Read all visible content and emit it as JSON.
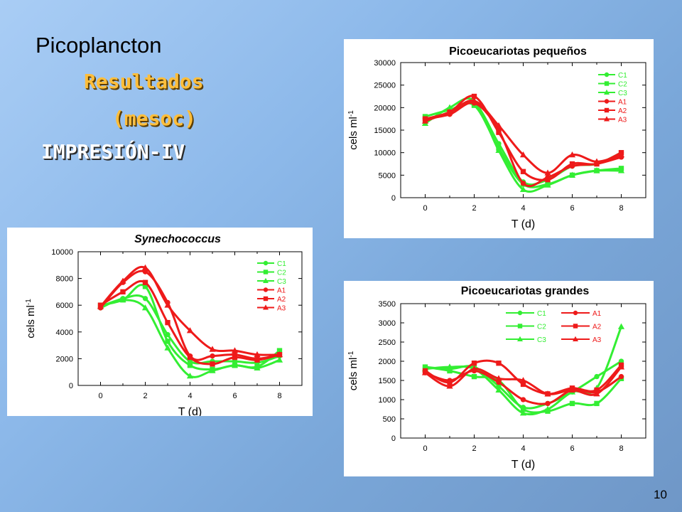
{
  "slide": {
    "title": "Picoplancton",
    "subtitle1": "Resultados",
    "subtitle2": "(mesoc)",
    "subtitle3": "IMPRESIÓN-IV",
    "page_number": "10"
  },
  "colors": {
    "control": "#33ee33",
    "treatment": "#ee1a1a"
  },
  "chart_data": [
    {
      "type": "line",
      "title": "Picoeucariotas pequeños",
      "xlabel": "T (d)",
      "ylabel": "cels ml-1",
      "xlim": [
        -1,
        9
      ],
      "ylim": [
        0,
        30000
      ],
      "xticks": [
        0,
        2,
        4,
        6,
        8
      ],
      "yticks": [
        0,
        5000,
        10000,
        15000,
        20000,
        25000,
        30000
      ],
      "legend_position": "top-right",
      "series": [
        {
          "name": "C1",
          "color": "#33ee33",
          "marker": "circle",
          "x": [
            0,
            1,
            2,
            3,
            4,
            5,
            6,
            7,
            8
          ],
          "y": [
            17000,
            19000,
            21000,
            12000,
            3500,
            4000,
            7000,
            7500,
            10000
          ]
        },
        {
          "name": "C2",
          "color": "#33ee33",
          "marker": "square",
          "x": [
            0,
            1,
            2,
            3,
            4,
            5,
            6,
            7,
            8
          ],
          "y": [
            18000,
            19500,
            20500,
            11000,
            3000,
            3000,
            5000,
            6000,
            6500
          ]
        },
        {
          "name": "C3",
          "color": "#33ee33",
          "marker": "triangle",
          "x": [
            0,
            1,
            2,
            3,
            4,
            5,
            6,
            7,
            8
          ],
          "y": [
            16500,
            20000,
            21500,
            10500,
            1800,
            2800,
            5000,
            6000,
            6000
          ]
        },
        {
          "name": "A1",
          "color": "#ee1a1a",
          "marker": "circle",
          "x": [
            0,
            1,
            2,
            3,
            4,
            5,
            6,
            7,
            8
          ],
          "y": [
            17500,
            18500,
            21000,
            15000,
            3200,
            4500,
            7000,
            7500,
            9000
          ]
        },
        {
          "name": "A2",
          "color": "#ee1a1a",
          "marker": "square",
          "x": [
            0,
            1,
            2,
            3,
            4,
            5,
            6,
            7,
            8
          ],
          "y": [
            17500,
            19000,
            22500,
            14500,
            5800,
            4000,
            7500,
            7500,
            10000
          ]
        },
        {
          "name": "A3",
          "color": "#ee1a1a",
          "marker": "triangle",
          "x": [
            0,
            1,
            2,
            3,
            4,
            5,
            6,
            7,
            8
          ],
          "y": [
            17000,
            19000,
            21500,
            16000,
            9500,
            5500,
            9500,
            8000,
            9500
          ]
        }
      ]
    },
    {
      "type": "line",
      "title": "Synechococcus",
      "xlabel": "T (d)",
      "ylabel": "cels ml-1",
      "xlim": [
        -1,
        9
      ],
      "ylim": [
        0,
        10000
      ],
      "xticks": [
        0,
        2,
        4,
        6,
        8
      ],
      "yticks": [
        0,
        2000,
        4000,
        6000,
        8000,
        10000
      ],
      "legend_position": "top-right",
      "series": [
        {
          "name": "C1",
          "color": "#33ee33",
          "marker": "circle",
          "x": [
            0,
            1,
            2,
            3,
            4,
            5,
            6,
            7,
            8
          ],
          "y": [
            5800,
            6500,
            6500,
            3800,
            1800,
            1800,
            1800,
            1700,
            2200
          ]
        },
        {
          "name": "C2",
          "color": "#33ee33",
          "marker": "square",
          "x": [
            0,
            1,
            2,
            3,
            4,
            5,
            6,
            7,
            8
          ],
          "y": [
            6000,
            6400,
            7400,
            3300,
            1500,
            1200,
            1500,
            1400,
            2600
          ]
        },
        {
          "name": "C3",
          "color": "#33ee33",
          "marker": "triangle",
          "x": [
            0,
            1,
            2,
            3,
            4,
            5,
            6,
            7,
            8
          ],
          "y": [
            5900,
            6400,
            5800,
            2800,
            700,
            1100,
            1500,
            1300,
            1900
          ]
        },
        {
          "name": "A1",
          "color": "#ee1a1a",
          "marker": "circle",
          "x": [
            0,
            1,
            2,
            3,
            4,
            5,
            6,
            7,
            8
          ],
          "y": [
            5800,
            7700,
            8500,
            6200,
            2200,
            2200,
            2300,
            2000,
            2300
          ]
        },
        {
          "name": "A2",
          "color": "#ee1a1a",
          "marker": "square",
          "x": [
            0,
            1,
            2,
            3,
            4,
            5,
            6,
            7,
            8
          ],
          "y": [
            6000,
            7000,
            7700,
            4700,
            2100,
            1600,
            2100,
            1900,
            2300
          ]
        },
        {
          "name": "A3",
          "color": "#ee1a1a",
          "marker": "triangle",
          "x": [
            0,
            1,
            2,
            3,
            4,
            5,
            6,
            7,
            8
          ],
          "y": [
            5900,
            7800,
            8800,
            6000,
            4100,
            2700,
            2600,
            2300,
            2300
          ]
        }
      ]
    },
    {
      "type": "line",
      "title": "Picoeucariotas grandes",
      "xlabel": "T (d)",
      "ylabel": "cels ml-1",
      "xlim": [
        -1,
        9
      ],
      "ylim": [
        0,
        3500
      ],
      "xticks": [
        0,
        2,
        4,
        6,
        8
      ],
      "yticks": [
        0,
        500,
        1000,
        1500,
        2000,
        2500,
        3000,
        3500
      ],
      "legend_position": "top",
      "series": [
        {
          "name": "C1",
          "color": "#33ee33",
          "marker": "circle",
          "x": [
            0,
            1,
            2,
            3,
            4,
            5,
            6,
            7,
            8
          ],
          "y": [
            1850,
            1800,
            1850,
            1350,
            800,
            900,
            1200,
            1600,
            2000
          ]
        },
        {
          "name": "C2",
          "color": "#33ee33",
          "marker": "square",
          "x": [
            0,
            1,
            2,
            3,
            4,
            5,
            6,
            7,
            8
          ],
          "y": [
            1850,
            1750,
            1600,
            1500,
            750,
            700,
            900,
            900,
            1550
          ]
        },
        {
          "name": "C3",
          "color": "#33ee33",
          "marker": "triangle",
          "x": [
            0,
            1,
            2,
            3,
            4,
            5,
            6,
            7,
            8
          ],
          "y": [
            1800,
            1850,
            1800,
            1250,
            650,
            750,
            1200,
            1300,
            2900
          ]
        },
        {
          "name": "A1",
          "color": "#ee1a1a",
          "marker": "circle",
          "x": [
            0,
            1,
            2,
            3,
            4,
            5,
            6,
            7,
            8
          ],
          "y": [
            1700,
            1500,
            1750,
            1450,
            1000,
            900,
            1250,
            1200,
            1600
          ]
        },
        {
          "name": "A2",
          "color": "#ee1a1a",
          "marker": "square",
          "x": [
            0,
            1,
            2,
            3,
            4,
            5,
            6,
            7,
            8
          ],
          "y": [
            1750,
            1450,
            1950,
            1950,
            1400,
            1150,
            1300,
            1250,
            1900
          ]
        },
        {
          "name": "A3",
          "color": "#ee1a1a",
          "marker": "triangle",
          "x": [
            0,
            1,
            2,
            3,
            4,
            5,
            6,
            7,
            8
          ],
          "y": [
            1700,
            1350,
            1800,
            1550,
            1500,
            1150,
            1250,
            1150,
            1850
          ]
        }
      ]
    }
  ]
}
